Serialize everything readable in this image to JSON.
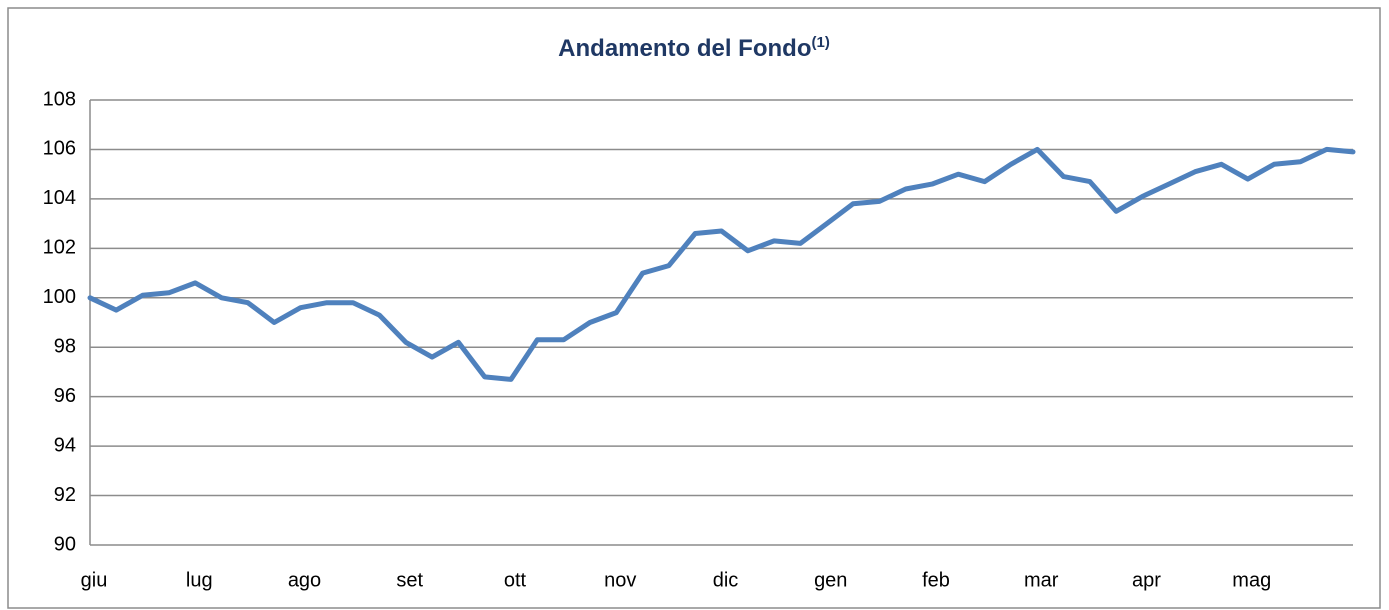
{
  "chart_data": {
    "type": "line",
    "title": "Andamento del Fondo",
    "title_note": "(1)",
    "categories": [
      "giu",
      null,
      null,
      null,
      "lug",
      null,
      null,
      null,
      "ago",
      null,
      null,
      null,
      "set",
      null,
      null,
      null,
      "ott",
      null,
      null,
      null,
      "nov",
      null,
      null,
      null,
      "dic",
      null,
      null,
      null,
      "gen",
      null,
      null,
      null,
      "feb",
      null,
      null,
      null,
      "mar",
      null,
      null,
      null,
      "apr",
      null,
      null,
      null,
      "mag",
      null,
      null,
      null,
      null
    ],
    "values": [
      100,
      99.5,
      100.1,
      100.2,
      100.6,
      100.0,
      99.8,
      99.0,
      99.6,
      99.8,
      99.8,
      99.3,
      98.2,
      97.6,
      98.2,
      96.8,
      96.7,
      98.3,
      98.3,
      99.0,
      99.4,
      101.0,
      101.3,
      102.6,
      102.7,
      101.9,
      102.3,
      102.2,
      103.0,
      103.8,
      103.9,
      104.4,
      104.6,
      105.0,
      104.7,
      105.4,
      106.0,
      104.9,
      104.7,
      103.5,
      104.1,
      104.6,
      105.1,
      105.4,
      104.8,
      105.4,
      105.5,
      106.0,
      105.9
    ],
    "color": "#4f81bd",
    "ylim": [
      90,
      108
    ],
    "yticks": [
      90,
      92,
      94,
      96,
      98,
      100,
      102,
      104,
      106,
      108
    ],
    "grid": true
  }
}
